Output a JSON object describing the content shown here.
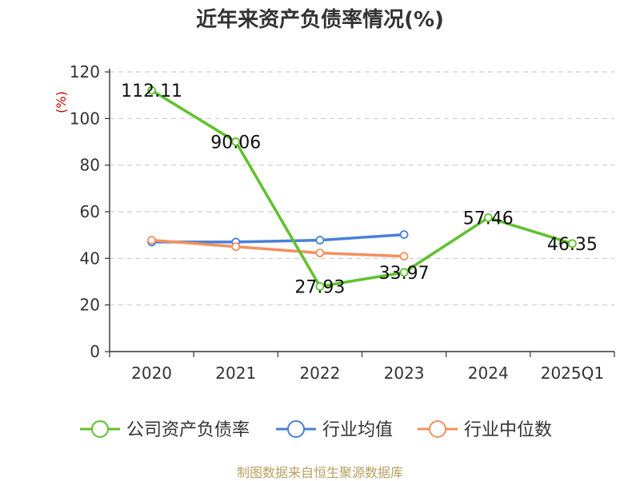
{
  "title": "近年来资产负债率情况(%)",
  "source": "制图数据来自恒生聚源数据库",
  "colors": {
    "company": "#5ec22c",
    "industry_avg": "#4a7fd8",
    "industry_median": "#f3905e",
    "grid": "#cccccc",
    "axis": "#333333",
    "unit_label": "#cc0000"
  },
  "chart_data": {
    "type": "line",
    "title": "近年来资产负债率情况(%)",
    "ylabel": "(%)",
    "xlabel": "",
    "categories": [
      "2020",
      "2021",
      "2022",
      "2023",
      "2024",
      "2025Q1"
    ],
    "ylim": [
      0,
      120
    ],
    "yticks": [
      "0",
      "20",
      "40",
      "60",
      "80",
      "100",
      "120"
    ],
    "grid": "horizontal-dashed",
    "legend_position": "bottom",
    "series": [
      {
        "name": "公司资产负债率",
        "color": "#5ec22c",
        "values": [
          112.11,
          90.06,
          27.93,
          33.97,
          57.46,
          46.35
        ],
        "labels": [
          "112.11",
          "90.06",
          "27.93",
          "33.97",
          "57.46",
          "46.35"
        ]
      },
      {
        "name": "行业均值",
        "color": "#4a7fd8",
        "values": [
          47.0,
          47.0,
          47.8,
          50.2,
          null,
          null
        ]
      },
      {
        "name": "行业中位数",
        "color": "#f3905e",
        "values": [
          47.8,
          45.0,
          42.3,
          40.9,
          null,
          null
        ]
      }
    ]
  }
}
